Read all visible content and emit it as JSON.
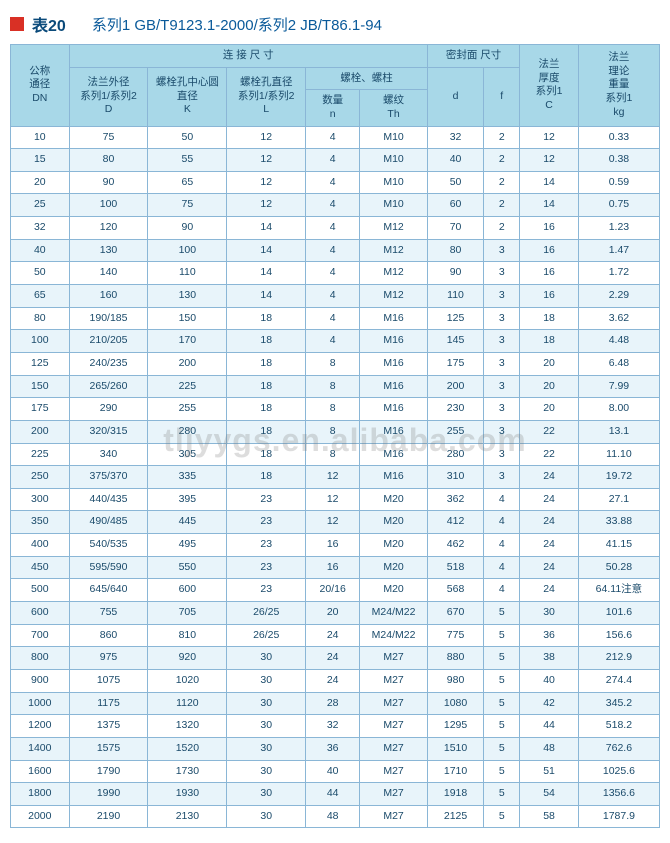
{
  "title": {
    "label": "表20",
    "sub": "系列1 GB/T9123.1-2000/系列2 JB/T86.1-94"
  },
  "watermark": "tljyygs.en.alibaba.com",
  "headers": {
    "dn": "公称\n通径\nDN",
    "conn": "连 接 尺 寸",
    "D": "法兰外径\n系列1/系列2\nD",
    "K": "螺栓孔中心圆\n直径\nK",
    "L": "螺栓孔直径\n系列1/系列2\nL",
    "bolt": "螺栓、螺柱",
    "n": "数量\nn",
    "Th": "螺纹\nTh",
    "seal": "密封面 尺寸",
    "d": "d",
    "f": "f",
    "C": "法兰\n厚度\n系列1\nC",
    "kg": "法兰\n理论\n重量\n系列1\nkg"
  },
  "rows": [
    [
      "10",
      "75",
      "50",
      "12",
      "4",
      "M10",
      "32",
      "2",
      "12",
      "0.33"
    ],
    [
      "15",
      "80",
      "55",
      "12",
      "4",
      "M10",
      "40",
      "2",
      "12",
      "0.38"
    ],
    [
      "20",
      "90",
      "65",
      "12",
      "4",
      "M10",
      "50",
      "2",
      "14",
      "0.59"
    ],
    [
      "25",
      "100",
      "75",
      "12",
      "4",
      "M10",
      "60",
      "2",
      "14",
      "0.75"
    ],
    [
      "32",
      "120",
      "90",
      "14",
      "4",
      "M12",
      "70",
      "2",
      "16",
      "1.23"
    ],
    [
      "40",
      "130",
      "100",
      "14",
      "4",
      "M12",
      "80",
      "3",
      "16",
      "1.47"
    ],
    [
      "50",
      "140",
      "110",
      "14",
      "4",
      "M12",
      "90",
      "3",
      "16",
      "1.72"
    ],
    [
      "65",
      "160",
      "130",
      "14",
      "4",
      "M12",
      "110",
      "3",
      "16",
      "2.29"
    ],
    [
      "80",
      "190/185",
      "150",
      "18",
      "4",
      "M16",
      "125",
      "3",
      "18",
      "3.62"
    ],
    [
      "100",
      "210/205",
      "170",
      "18",
      "4",
      "M16",
      "145",
      "3",
      "18",
      "4.48"
    ],
    [
      "125",
      "240/235",
      "200",
      "18",
      "8",
      "M16",
      "175",
      "3",
      "20",
      "6.48"
    ],
    [
      "150",
      "265/260",
      "225",
      "18",
      "8",
      "M16",
      "200",
      "3",
      "20",
      "7.99"
    ],
    [
      "175",
      "290",
      "255",
      "18",
      "8",
      "M16",
      "230",
      "3",
      "20",
      "8.00"
    ],
    [
      "200",
      "320/315",
      "280",
      "18",
      "8",
      "M16",
      "255",
      "3",
      "22",
      "13.1"
    ],
    [
      "225",
      "340",
      "305",
      "18",
      "8",
      "M16",
      "280",
      "3",
      "22",
      "11.10"
    ],
    [
      "250",
      "375/370",
      "335",
      "18",
      "12",
      "M16",
      "310",
      "3",
      "24",
      "19.72"
    ],
    [
      "300",
      "440/435",
      "395",
      "23",
      "12",
      "M20",
      "362",
      "4",
      "24",
      "27.1"
    ],
    [
      "350",
      "490/485",
      "445",
      "23",
      "12",
      "M20",
      "412",
      "4",
      "24",
      "33.88"
    ],
    [
      "400",
      "540/535",
      "495",
      "23",
      "16",
      "M20",
      "462",
      "4",
      "24",
      "41.15"
    ],
    [
      "450",
      "595/590",
      "550",
      "23",
      "16",
      "M20",
      "518",
      "4",
      "24",
      "50.28"
    ],
    [
      "500",
      "645/640",
      "600",
      "23",
      "20/16",
      "M20",
      "568",
      "4",
      "24",
      "64.11注意"
    ],
    [
      "600",
      "755",
      "705",
      "26/25",
      "20",
      "M24/M22",
      "670",
      "5",
      "30",
      "101.6"
    ],
    [
      "700",
      "860",
      "810",
      "26/25",
      "24",
      "M24/M22",
      "775",
      "5",
      "36",
      "156.6"
    ],
    [
      "800",
      "975",
      "920",
      "30",
      "24",
      "M27",
      "880",
      "5",
      "38",
      "212.9"
    ],
    [
      "900",
      "1075",
      "1020",
      "30",
      "24",
      "M27",
      "980",
      "5",
      "40",
      "274.4"
    ],
    [
      "1000",
      "1175",
      "1120",
      "30",
      "28",
      "M27",
      "1080",
      "5",
      "42",
      "345.2"
    ],
    [
      "1200",
      "1375",
      "1320",
      "30",
      "32",
      "M27",
      "1295",
      "5",
      "44",
      "518.2"
    ],
    [
      "1400",
      "1575",
      "1520",
      "30",
      "36",
      "M27",
      "1510",
      "5",
      "48",
      "762.6"
    ],
    [
      "1600",
      "1790",
      "1730",
      "30",
      "40",
      "M27",
      "1710",
      "5",
      "51",
      "1025.6"
    ],
    [
      "1800",
      "1990",
      "1930",
      "30",
      "44",
      "M27",
      "1918",
      "5",
      "54",
      "1356.6"
    ],
    [
      "2000",
      "2190",
      "2130",
      "30",
      "48",
      "M27",
      "2125",
      "5",
      "58",
      "1787.9"
    ]
  ],
  "colWidths": [
    "52",
    "70",
    "70",
    "70",
    "48",
    "60",
    "50",
    "32",
    "52",
    "72"
  ]
}
